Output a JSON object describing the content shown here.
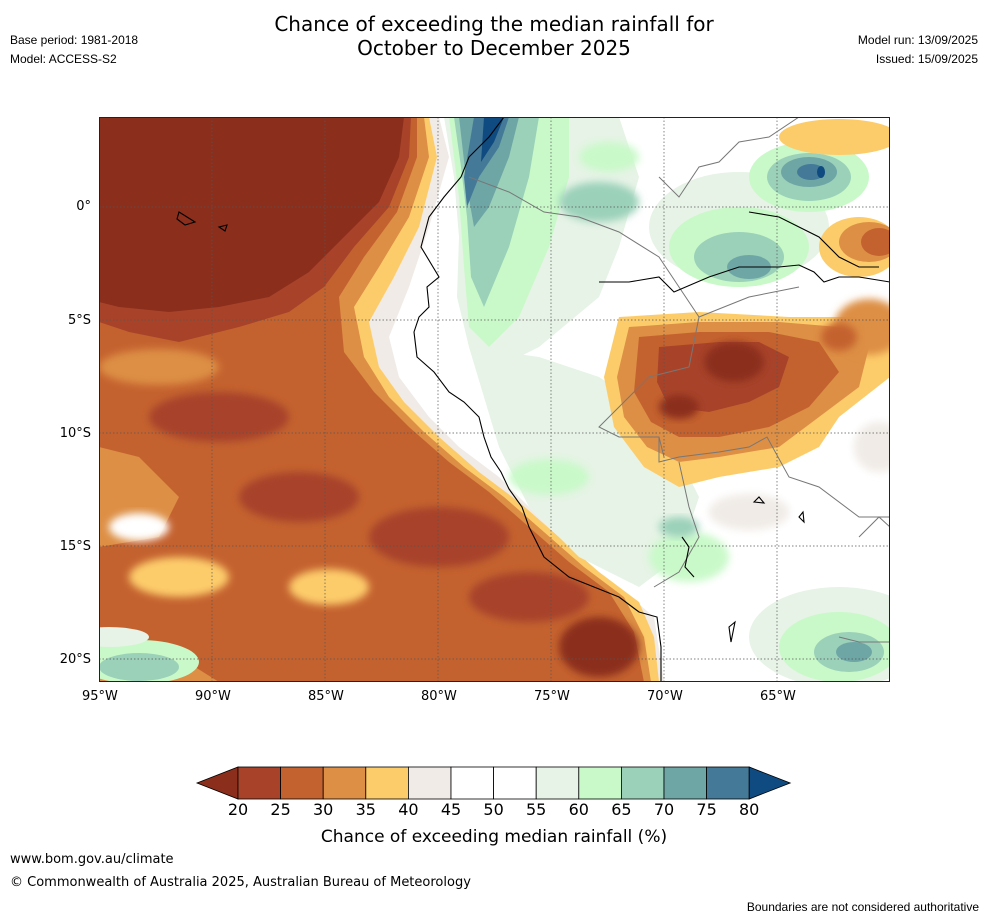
{
  "header": {
    "title_line1": "Chance of exceeding the median rainfall for",
    "title_line2": "October to December 2025",
    "base_period": "Base period: 1981-2018",
    "model": "Model: ACCESS-S2",
    "model_run": "Model run: 13/09/2025",
    "issued": "Issued: 15/09/2025"
  },
  "map": {
    "lon_ticks": [
      "95°W",
      "90°W",
      "85°W",
      "80°W",
      "75°W",
      "70°W",
      "65°W"
    ],
    "lat_ticks": [
      "0°",
      "5°S",
      "10°S",
      "15°S",
      "20°S"
    ]
  },
  "colorbar": {
    "title": "Chance of exceeding median rainfall (%)",
    "ticks": [
      "20",
      "25",
      "30",
      "35",
      "40",
      "45",
      "50",
      "55",
      "60",
      "65",
      "70",
      "75",
      "80"
    ],
    "colors": [
      "#8b2e1c",
      "#a8432a",
      "#c4622f",
      "#dd8f45",
      "#fdcc6a",
      "#f0ebe6",
      "#ffffff",
      "#ffffff",
      "#e6f3e6",
      "#c9f9c9",
      "#9bd1b9",
      "#6ea6a6",
      "#447a98",
      "#0f4b80"
    ]
  },
  "footer": {
    "url": "www.bom.gov.au/climate",
    "copyright": "© Commonwealth of Australia 2025, Australian Bureau of Meteorology",
    "disclaimer": "Boundaries are not considered authoritative"
  }
}
